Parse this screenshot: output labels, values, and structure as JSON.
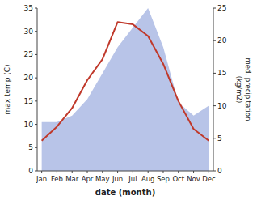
{
  "chart_data": {
    "type": "line",
    "categories": [
      "Jan",
      "Feb",
      "Mar",
      "Apr",
      "May",
      "Jun",
      "Jul",
      "Aug",
      "Sep",
      "Oct",
      "Nov",
      "Dec"
    ],
    "series": [
      {
        "type": "area",
        "axis": "y2",
        "color": "#b8c4e8",
        "values": [
          7.5,
          7.5,
          8.5,
          11.0,
          15.0,
          19.0,
          22.0,
          25.0,
          19.0,
          10.5,
          8.5,
          10.0
        ]
      },
      {
        "type": "line",
        "color": "#c0392b",
        "values": [
          6.5,
          9.5,
          13.5,
          19.5,
          24.0,
          32.0,
          31.5,
          29.0,
          23.0,
          15.0,
          9.0,
          6.5
        ]
      }
    ],
    "xlabel": "date (month)",
    "ylabel": "max temp (C)",
    "y2label": "med. precipitation\n(kg/m2)",
    "ylim": [
      0,
      35
    ],
    "yticks": [
      0,
      5,
      10,
      15,
      20,
      25,
      30,
      35
    ],
    "y2lim": [
      0,
      25
    ],
    "y2ticks": [
      0,
      5,
      10,
      15,
      20,
      25
    ],
    "grid": false
  }
}
